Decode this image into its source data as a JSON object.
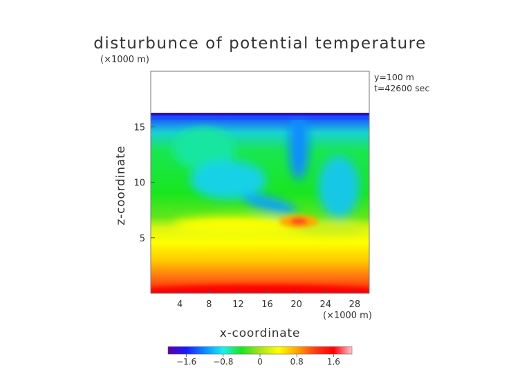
{
  "chart_data": {
    "type": "heatmap",
    "title": "disturbunce of potential temperature",
    "scale_label_top": "(×1000 m)",
    "scale_label_bottom": "(×1000 m)",
    "xlabel": "x-coordinate",
    "ylabel": "z-coordinate",
    "annotations": [
      "y=100 m",
      "t=42600 sec"
    ],
    "xlim": [
      0,
      30
    ],
    "ylim": [
      0,
      20
    ],
    "x_ticks": [
      4,
      8,
      12,
      16,
      20,
      24,
      28
    ],
    "y_ticks": [
      5,
      10,
      15
    ],
    "data_top_z": 16.3,
    "colorbar": {
      "min": -2.0,
      "max": 2.0,
      "ticks": [
        -1.6,
        -0.8,
        0,
        0.8,
        1.6
      ],
      "tick_labels": [
        "−1.6",
        "−0.8",
        "0",
        "0.8",
        "1.6"
      ],
      "colors": [
        "#5a00a8",
        "#1a1aff",
        "#0a8cff",
        "#19f0f0",
        "#19e61e",
        "#a6e619",
        "#ffff00",
        "#ffa800",
        "#ff3c14",
        "#ff0000",
        "#ffc8d2"
      ]
    },
    "grid": false,
    "legend": "colorbar-bottom"
  }
}
